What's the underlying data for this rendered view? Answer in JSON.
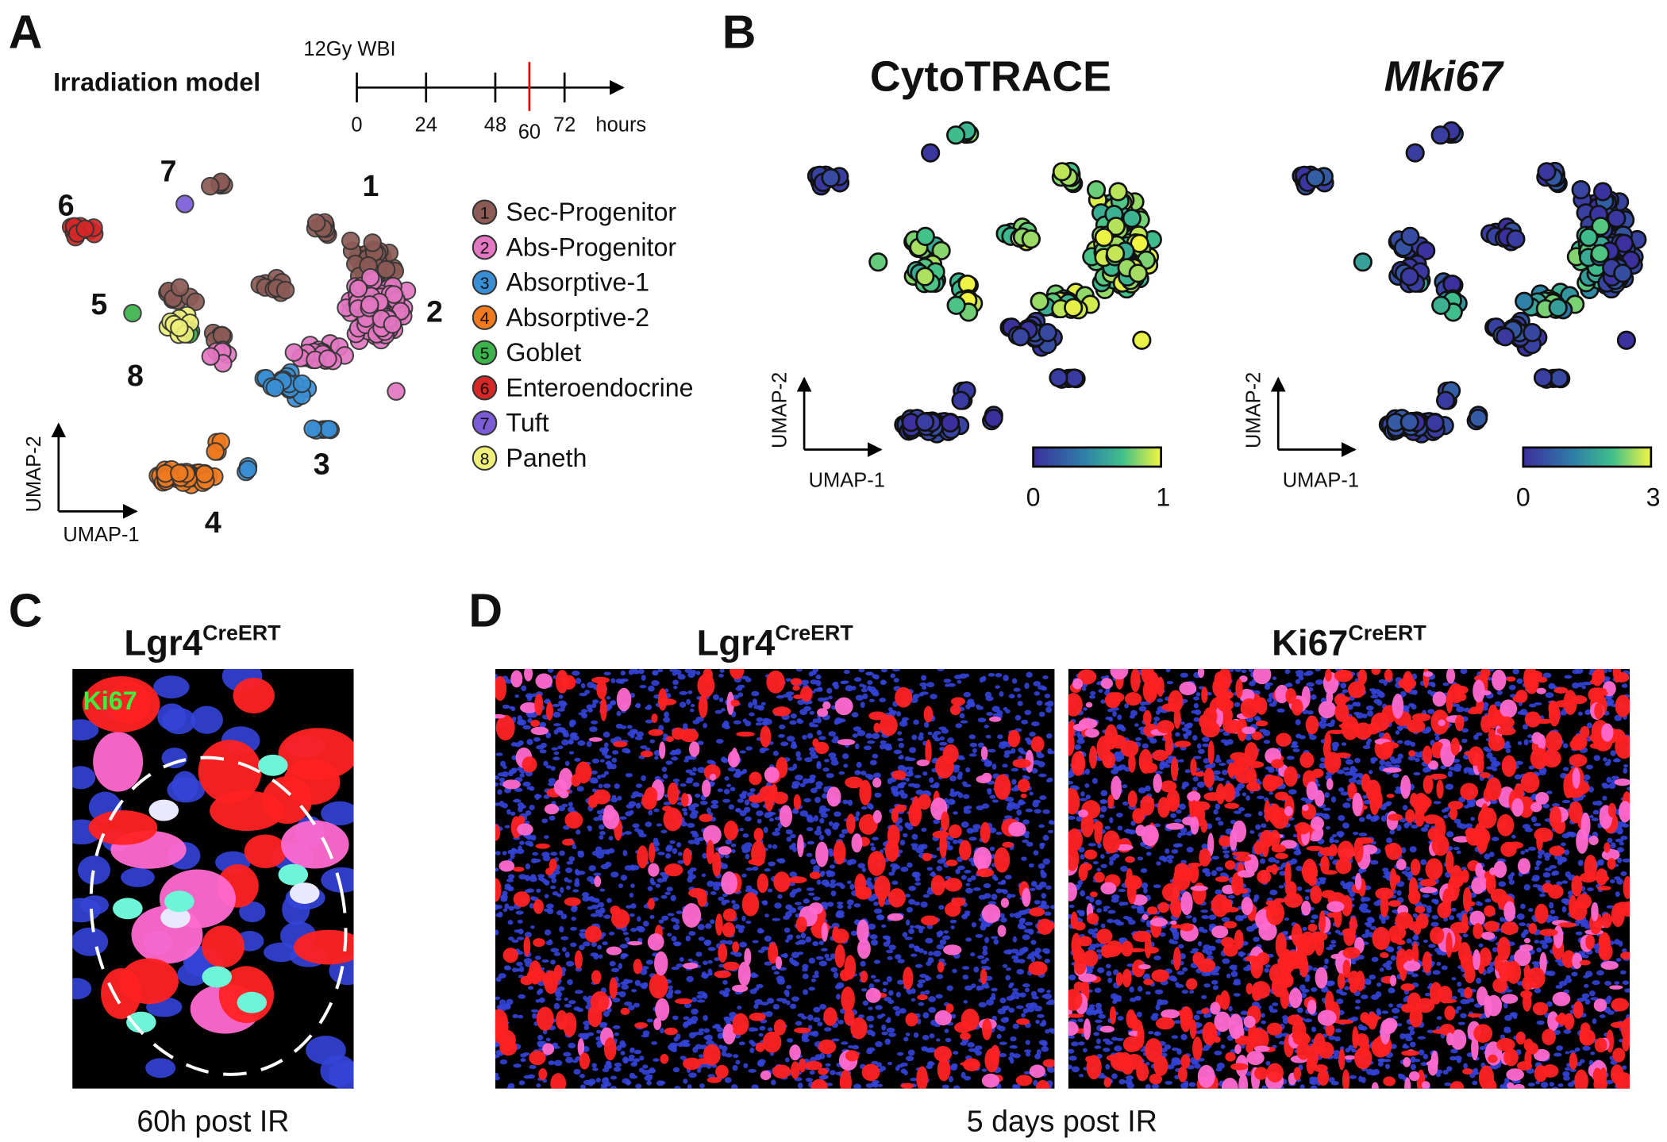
{
  "panel_a": {
    "label": "A",
    "title": "Irradiation model",
    "timeline": {
      "label": "12Gy WBI",
      "ticks": [
        "0",
        "24",
        "48",
        "60",
        "72"
      ],
      "unit": "hours"
    },
    "cluster_labels": [
      "1",
      "2",
      "3",
      "4",
      "5",
      "6",
      "7",
      "8"
    ],
    "legend": [
      {
        "number": "1",
        "name": "Sec-Progenitor",
        "color": "#8c5b55"
      },
      {
        "number": "2",
        "name": "Abs-Progenitor",
        "color": "#e377c2"
      },
      {
        "number": "3",
        "name": "Absorptive-1",
        "color": "#3a8fd4"
      },
      {
        "number": "4",
        "name": "Absorptive-2",
        "color": "#f07a1f"
      },
      {
        "number": "5",
        "name": "Goblet",
        "color": "#3cb44b"
      },
      {
        "number": "6",
        "name": "Enteroendocrine",
        "color": "#d62728"
      },
      {
        "number": "7",
        "name": "Tuft",
        "color": "#7b5cd6"
      },
      {
        "number": "8",
        "name": "Paneth",
        "color": "#eef07a"
      }
    ],
    "x_axis": "UMAP-1",
    "y_axis": "UMAP-2"
  },
  "panel_b": {
    "label": "B",
    "plots": [
      {
        "title": "CytoTRACE",
        "colorbar_ticks": [
          "0",
          "1"
        ],
        "x_axis": "UMAP-1",
        "y_axis": "UMAP-2"
      },
      {
        "title": "Mki67",
        "colorbar_ticks": [
          "0",
          "3"
        ],
        "x_axis": "UMAP-1",
        "y_axis": "UMAP-2"
      }
    ]
  },
  "panel_c": {
    "label": "C",
    "title": "Lgr4",
    "title_superscript": "CreERT",
    "stain_label": "Ki67",
    "caption": "60h post IR"
  },
  "panel_d": {
    "label": "D",
    "images": [
      {
        "title": "Lgr4",
        "title_superscript": "CreERT"
      },
      {
        "title": "Ki67",
        "title_superscript": "CreERT"
      }
    ],
    "caption": "5 days post IR"
  }
}
